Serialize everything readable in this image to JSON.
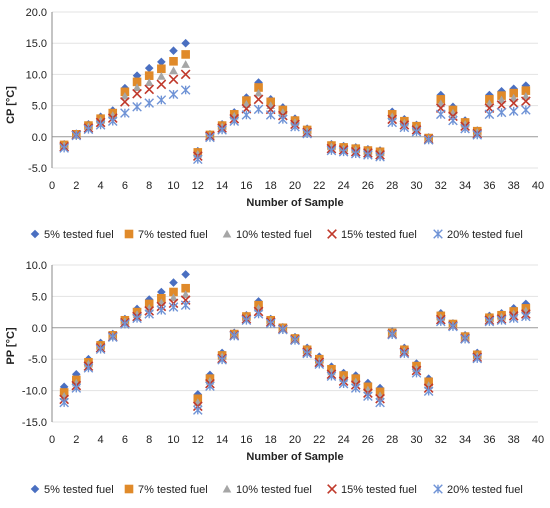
{
  "series_styles": [
    {
      "name": "5% tested fuel",
      "marker": "diamond",
      "color": "#4a6fc1"
    },
    {
      "name": "7% tested fuel",
      "marker": "square",
      "color": "#e08a2a"
    },
    {
      "name": "10% tested fuel",
      "marker": "triangle",
      "color": "#a6a6a6"
    },
    {
      "name": "15% tested fuel",
      "marker": "x",
      "color": "#c0392b"
    },
    {
      "name": "20% tested fuel",
      "marker": "star",
      "color": "#6f93d6"
    }
  ],
  "chart_data": [
    {
      "type": "scatter",
      "title": "",
      "xlabel": "Number of Sample",
      "ylabel": "CP [°C]",
      "xlim": [
        0,
        40
      ],
      "ylim": [
        -5,
        20
      ],
      "xticks": [
        0,
        2,
        4,
        6,
        8,
        10,
        12,
        14,
        16,
        18,
        20,
        22,
        24,
        26,
        28,
        30,
        32,
        34,
        36,
        38,
        40
      ],
      "yticks": [
        -5.0,
        0.0,
        5.0,
        10.0,
        15.0,
        20.0
      ],
      "ytick_labels": [
        "-5.0",
        "0.0",
        "5.0",
        "10.0",
        "15.0",
        "20.0"
      ],
      "legend_position": "bottom",
      "x": [
        1,
        2,
        3,
        4,
        5,
        6,
        7,
        8,
        9,
        10,
        11,
        12,
        13,
        14,
        15,
        16,
        17,
        18,
        19,
        20,
        21,
        22,
        23,
        24,
        25,
        26,
        27,
        28,
        29,
        30,
        31,
        32,
        33,
        34,
        35,
        36,
        37,
        38,
        39
      ],
      "series": [
        {
          "name": "5% tested fuel",
          "values": [
            -1.2,
            0.5,
            2.0,
            3.2,
            4.2,
            7.8,
            9.8,
            11.0,
            12.0,
            13.8,
            15.0,
            -2.3,
            0.4,
            2.0,
            3.9,
            6.3,
            8.7,
            6.0,
            4.7,
            2.9,
            1.3,
            null,
            -1.2,
            -1.5,
            -1.7,
            -2.0,
            -2.2,
            4.0,
            2.8,
            1.9,
            -0.1,
            6.7,
            4.8,
            2.6,
            1.0,
            6.7,
            7.3,
            7.7,
            8.2
          ]
        },
        {
          "name": "7% tested fuel",
          "values": [
            -1.3,
            0.4,
            1.8,
            2.9,
            3.8,
            7.2,
            8.8,
            9.8,
            10.9,
            12.1,
            13.2,
            -2.5,
            0.3,
            1.8,
            3.6,
            5.8,
            7.9,
            5.6,
            4.3,
            2.6,
            1.1,
            null,
            -1.4,
            -1.7,
            -1.9,
            -2.2,
            -2.4,
            3.6,
            2.5,
            1.7,
            -0.2,
            6.0,
            4.3,
            2.3,
            0.9,
            6.0,
            6.6,
            7.0,
            7.4
          ]
        },
        {
          "name": "10% tested fuel",
          "values": [
            -1.4,
            0.4,
            1.6,
            2.6,
            3.4,
            6.5,
            7.9,
            8.7,
            9.7,
            10.6,
            11.6,
            -2.8,
            0.2,
            1.6,
            3.3,
            5.2,
            7.0,
            5.0,
            3.9,
            2.3,
            0.9,
            null,
            -1.6,
            -1.9,
            -2.1,
            -2.4,
            -2.6,
            3.2,
            2.2,
            1.4,
            -0.3,
            5.3,
            3.8,
            2.0,
            0.7,
            5.3,
            5.9,
            6.2,
            6.5
          ]
        },
        {
          "name": "15% tested fuel",
          "values": [
            -1.6,
            0.3,
            1.4,
            2.3,
            3.0,
            5.6,
            6.9,
            7.6,
            8.4,
            9.2,
            10.0,
            -3.1,
            0.1,
            1.4,
            2.9,
            4.5,
            6.0,
            4.4,
            3.4,
            2.0,
            0.7,
            null,
            -1.9,
            -2.1,
            -2.4,
            -2.6,
            -2.9,
            2.8,
            1.9,
            1.1,
            -0.4,
            4.6,
            3.3,
            1.7,
            0.5,
            4.6,
            5.1,
            5.4,
            5.7
          ]
        },
        {
          "name": "20% tested fuel",
          "values": [
            -1.8,
            0.2,
            1.2,
            1.9,
            2.5,
            3.8,
            4.8,
            5.4,
            5.9,
            6.8,
            7.5,
            -3.6,
            -0.1,
            1.1,
            2.5,
            3.5,
            4.4,
            3.5,
            2.8,
            1.6,
            0.5,
            null,
            -2.2,
            -2.4,
            -2.7,
            -2.9,
            -3.2,
            2.3,
            1.5,
            0.8,
            -0.5,
            3.6,
            2.6,
            1.3,
            0.3,
            3.6,
            3.9,
            4.1,
            4.3
          ]
        }
      ]
    },
    {
      "type": "scatter",
      "title": "",
      "xlabel": "Number of Sample",
      "ylabel": "PP [°C]",
      "xlim": [
        0,
        40
      ],
      "ylim": [
        -15,
        10
      ],
      "xticks": [
        0,
        2,
        4,
        6,
        8,
        10,
        12,
        14,
        16,
        18,
        20,
        22,
        24,
        26,
        28,
        30,
        32,
        34,
        36,
        38,
        40
      ],
      "yticks": [
        -15.0,
        -10.0,
        -5.0,
        0.0,
        5.0,
        10.0
      ],
      "ytick_labels": [
        "-15.0",
        "-10.0",
        "-5.0",
        "0.0",
        "5.0",
        "10.0"
      ],
      "legend_position": "bottom",
      "x": [
        1,
        2,
        3,
        4,
        5,
        6,
        7,
        8,
        9,
        10,
        11,
        12,
        13,
        14,
        15,
        16,
        17,
        18,
        19,
        20,
        21,
        22,
        23,
        24,
        25,
        26,
        27,
        28,
        29,
        30,
        31,
        32,
        33,
        34,
        35,
        36,
        37,
        38,
        39
      ],
      "series": [
        {
          "name": "5% tested fuel",
          "values": [
            -9.4,
            -7.4,
            -5.0,
            -2.4,
            -1.0,
            1.4,
            3.0,
            4.5,
            5.7,
            7.2,
            8.5,
            -10.6,
            -7.5,
            -4.0,
            -0.8,
            2.0,
            4.2,
            1.4,
            0.1,
            -1.5,
            -3.2,
            -4.6,
            -6.2,
            -7.2,
            -7.6,
            -8.8,
            -9.6,
            -0.6,
            -3.2,
            -5.7,
            -8.1,
            2.3,
            0.7,
            -1.2,
            -4.0,
            1.9,
            2.3,
            3.1,
            3.8
          ]
        },
        {
          "name": "7% tested fuel",
          "values": [
            -10.3,
            -8.3,
            -5.5,
            -2.8,
            -1.2,
            1.2,
            2.5,
            3.8,
            4.7,
            5.7,
            6.3,
            -11.3,
            -8.1,
            -4.4,
            -1.0,
            1.8,
            3.6,
            1.2,
            0.0,
            -1.7,
            -3.5,
            -5.0,
            -6.6,
            -7.6,
            -8.1,
            -9.4,
            -10.2,
            -0.8,
            -3.5,
            -6.1,
            -8.6,
            1.9,
            0.6,
            -1.4,
            -4.3,
            1.6,
            2.0,
            2.6,
            3.1
          ]
        },
        {
          "name": "10% tested fuel",
          "values": [
            -10.9,
            -8.8,
            -5.8,
            -3.0,
            -1.3,
            1.0,
            2.1,
            3.1,
            4.0,
            4.8,
            5.3,
            -11.9,
            -8.5,
            -4.6,
            -1.1,
            1.6,
            3.1,
            1.1,
            -0.1,
            -1.8,
            -3.7,
            -5.3,
            -7.0,
            -8.1,
            -8.6,
            -9.9,
            -10.8,
            -0.9,
            -3.7,
            -6.5,
            -9.2,
            1.6,
            0.4,
            -1.5,
            -4.5,
            1.4,
            1.7,
            2.2,
            2.7
          ]
        },
        {
          "name": "15% tested fuel",
          "values": [
            -11.4,
            -9.2,
            -6.1,
            -3.2,
            -1.4,
            0.8,
            1.8,
            2.7,
            3.4,
            3.9,
            4.4,
            -12.5,
            -8.9,
            -4.9,
            -1.2,
            1.4,
            2.6,
            0.9,
            -0.2,
            -1.9,
            -3.9,
            -5.5,
            -7.4,
            -8.5,
            -9.1,
            -10.4,
            -11.3,
            -1.0,
            -3.9,
            -6.8,
            -9.6,
            1.3,
            0.3,
            -1.7,
            -4.7,
            1.2,
            1.4,
            1.9,
            2.2
          ]
        },
        {
          "name": "20% tested fuel",
          "values": [
            -11.9,
            -9.6,
            -6.4,
            -3.4,
            -1.5,
            0.6,
            1.5,
            2.2,
            2.8,
            3.3,
            3.6,
            -13.1,
            -9.3,
            -5.1,
            -1.3,
            1.2,
            2.2,
            0.7,
            -0.3,
            -2.0,
            -4.1,
            -5.8,
            -7.7,
            -8.9,
            -9.6,
            -10.9,
            -11.9,
            -1.1,
            -4.1,
            -7.2,
            -10.1,
            1.0,
            0.2,
            -1.8,
            -4.9,
            1.0,
            1.2,
            1.5,
            1.8
          ]
        }
      ]
    }
  ]
}
